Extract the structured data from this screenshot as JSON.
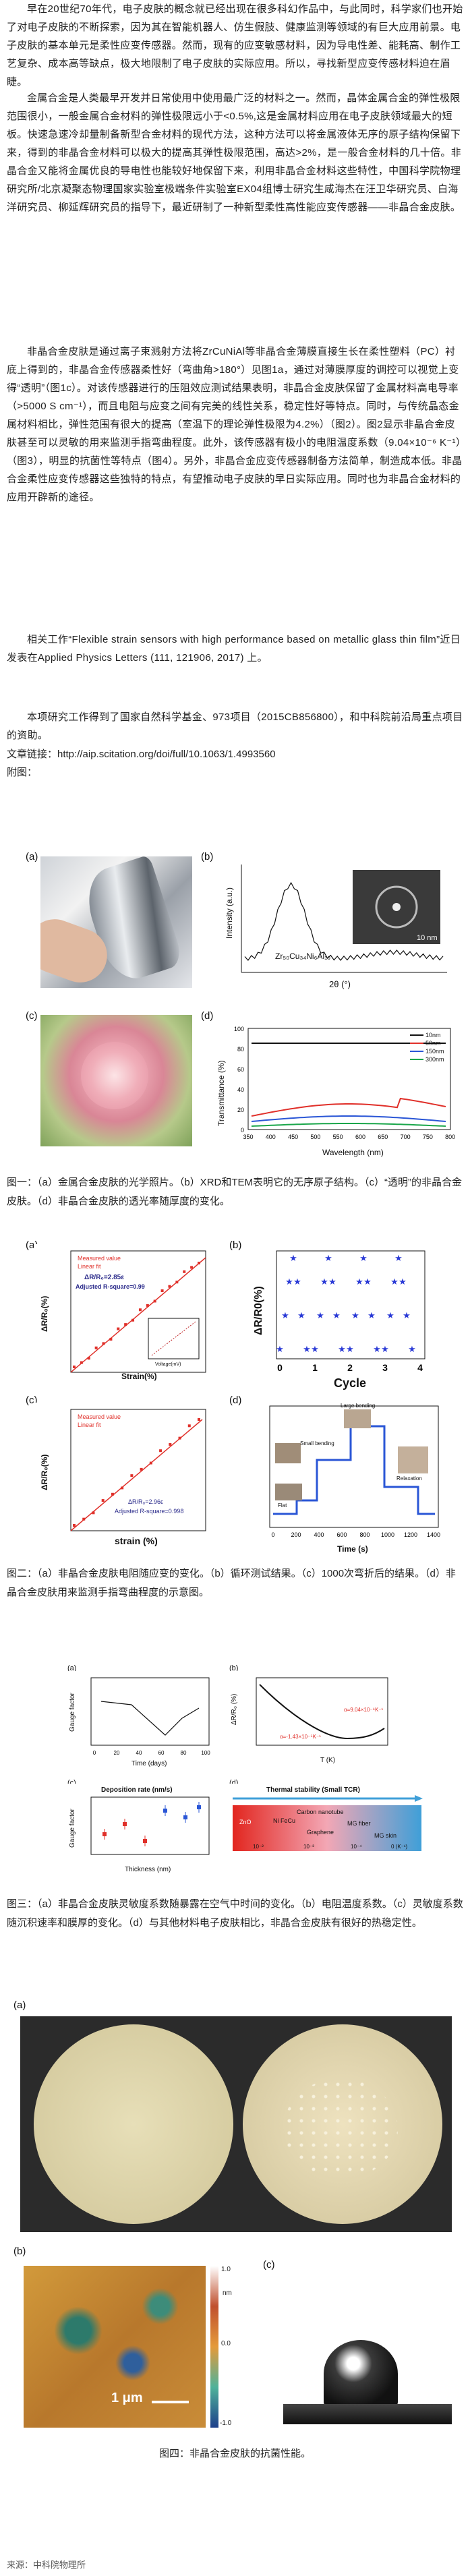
{
  "paragraphs": {
    "p1": "早在20世纪70年代，电子皮肤的概念就已经出现在很多科幻作品中，与此同时，科学家们也开始了对电子皮肤的不断探索，因为其在智能机器人、仿生假肢、健康监测等领域的有巨大应用前景。电子皮肤的基本单元是柔性应变传感器。然而，现有的应变敏感材料，因为导电性差、能耗高、制作工艺复杂、成本高等缺点，极大地限制了电子皮肤的实际应用。所以，寻找新型应变传感材料迫在眉睫。",
    "p2": "金属合金是人类最早开发并日常使用中使用最广泛的材料之一。然而，晶体金属合金的弹性极限范围很小，一般金属合金材料的弹性极限远小于<0.5%,这是金属材料应用在电子皮肤领域最大的短板。快速急速冷却量制备新型合金材料的现代方法，这种方法可以将金属液体无序的原子结构保留下来，得到的非晶合金材料可以极大的提高其弹性极限范围，高达>2%，是一般合金材料的几十倍。非晶合金又能将金属优良的导电性也能较好地保留下来，利用非晶合金材料这些特性，中国科学院物理研究所/北京凝聚态物理国家实验室极端条件实验室EX04组博士研究生咸海杰在汪卫华研究员、白海洋研究员、柳延辉研究员的指导下，最近研制了一种新型柔性高性能应变传感器——非晶合金皮肤。",
    "p3": "非晶合金皮肤是通过离子束溅射方法将ZrCuNiAl等非晶合金薄膜直接生长在柔性塑料（PC）衬底上得到的，非晶合金传感器柔性好（弯曲角>180°）见图1a，通过对薄膜厚度的调控可以视觉上变得“透明”（图1c）。对该传感器进行的压阻效应测试结果表明，非晶合金皮肤保留了金属材料高电导率（>5000 S cm⁻¹），而且电阻与应变之间有完美的线性关系，稳定性好等特点。同时，与传统晶态金属材料相比，弹性范围有很大的提高（室温下的理论弹性极限为4.2%）（图2）。图2显示非晶合金皮肤甚至可以灵敏的用来监测手指弯曲程度。此外，该传感器有极小的电阻温度系数（9.04×10⁻⁶ K⁻¹）（图3），明显的抗菌性等特点（图4）。另外，非晶合金应变传感器制备方法简单，制造成本低。非晶合金柔性应变传感器这些独特的特点，有望推动电子皮肤的早日实际应用。同时也为非晶合金材料的应用开辟新的途径。",
    "p4": "相关工作“Flexible strain sensors with high performance based on metallic glass thin film”近日发表在Applied Physics Letters (111, 121906, 2017) 上。",
    "p5": "本项研究工作得到了国家自然科学基金、973项目（2015CB856800），和中科院前沿局重点项目的资助。"
  },
  "article_link": "文章链接：http://aip.scitation.org/doi/full/10.1063/1.4993560",
  "attachments_label": "附图：",
  "figure1": {
    "labels": [
      "(a)",
      "(b)",
      "(c)",
      "(d)"
    ],
    "b_ylabel": "Intensity (a.u.)",
    "b_xlabel": "2θ (°)",
    "b_formula": "Zr₅₀Cu₃₄Ni₆Al₁₀",
    "b_scale": "10 nm",
    "d_ylabel": "Transmittance (%)",
    "d_xlabel": "Wavelength (nm)",
    "d_xticks": [
      "350",
      "400",
      "450",
      "500",
      "550",
      "600",
      "650",
      "700",
      "750",
      "800"
    ],
    "d_yticks": [
      "0",
      "20",
      "40",
      "60",
      "80",
      "100"
    ],
    "legend": [
      {
        "name": "10nm",
        "color": "#111111"
      },
      {
        "name": "50nm",
        "color": "#e0302a"
      },
      {
        "name": "150nm",
        "color": "#2a56d6"
      },
      {
        "name": "300nm",
        "color": "#1aa64a"
      }
    ],
    "caption": "图一：（a）金属合金皮肤的光学照片。（b）XRD和TEM表明它的无序原子结构。（c）“透明”的非晶合金皮肤。（d）非晶合金皮肤的透光率随厚度的变化。"
  },
  "figure2": {
    "labels": [
      "(a)",
      "(b)",
      "(c)",
      "(d)"
    ],
    "a_ylabel": "ΔR/R₀(%)",
    "a_xlabel": "Strain(%)",
    "a_legend": [
      "Measured value",
      "Linear fit"
    ],
    "a_eq": "ΔR/R₀=2.85ε",
    "a_r2": "Adjusted R-square=0.99",
    "a_inset_x": "Voltage(mV)",
    "a_inset_y": "I(μA)",
    "b_ylabel": "ΔR/R0(%)",
    "b_xlabel": "Cycle",
    "b_xticks": [
      "0",
      "1",
      "2",
      "3",
      "4"
    ],
    "c_ylabel": "ΔR/R₀(%)",
    "c_xlabel": "strain (%)",
    "c_legend": [
      "Measured value",
      "Linear fit"
    ],
    "c_eq": "ΔR/R₀=2.96ε",
    "c_r2": "Adjusted R-square=0.998",
    "d_xlabel": "Time (s)",
    "d_ylabel": "ΔR/R₀(%)",
    "d_annotations": [
      "Large bending",
      "Small bending",
      "Relaxation",
      "Flat"
    ],
    "d_xticks": [
      "0",
      "200",
      "400",
      "600",
      "800",
      "1000",
      "1200",
      "1400"
    ],
    "caption": "图二：（a）非晶合金皮肤电阻随应变的变化。（b）循环测试结果。（c）1000次弯折后的结果。（d）非晶合金皮肤用来监测手指弯曲程度的示意图。"
  },
  "figure3": {
    "labels": [
      "(a)",
      "(b)",
      "(c)",
      "(d)"
    ],
    "a_ylabel": "Gauge factor",
    "a_xlabel": "Time (days)",
    "a_xticks": [
      "0",
      "20",
      "40",
      "60",
      "80",
      "100"
    ],
    "b_ylabel": "ΔR/R₀ (%)",
    "b_xlabel": "T (K)",
    "b_ann1": "α=-1.43×10⁻⁵K⁻¹",
    "b_ann2": "α=9.04×10⁻⁶K⁻¹",
    "c_title": "Deposition rate (nm/s)",
    "c_ylabel": "Gauge factor",
    "c_xlabel": "Thickness (nm)",
    "d_title": "Thermal stability (Small TCR)",
    "d_items": [
      "ZnO",
      "Ni FeCu",
      "Carbon nanotube",
      "Graphene",
      "MG fiber",
      "MG skin"
    ],
    "d_axis": [
      "10⁻²",
      "10⁻³",
      "10⁻⁴",
      "0 (K⁻¹)"
    ],
    "caption": "图三：（a）非晶合金皮肤灵敏度系数随暴露在空气中时间的变化。（b）电阻温度系数。（c）灵敏度系数随沉积速率和膜厚的变化。（d）与其他材料电子皮肤相比，非晶合金皮肤有很好的热稳定性。"
  },
  "figure4": {
    "labels": [
      "(a)",
      "(b)",
      "(c)"
    ],
    "scale": "1 μm",
    "colorbar": [
      "1.0",
      "nm",
      "0.0",
      "-1.0"
    ],
    "caption": "图四：非晶合金皮肤的抗菌性能。"
  },
  "source": "来源：中科院物理所",
  "colors": {
    "text": "#222222",
    "accent_blue": "#2a56d6",
    "accent_red": "#e0302a"
  }
}
